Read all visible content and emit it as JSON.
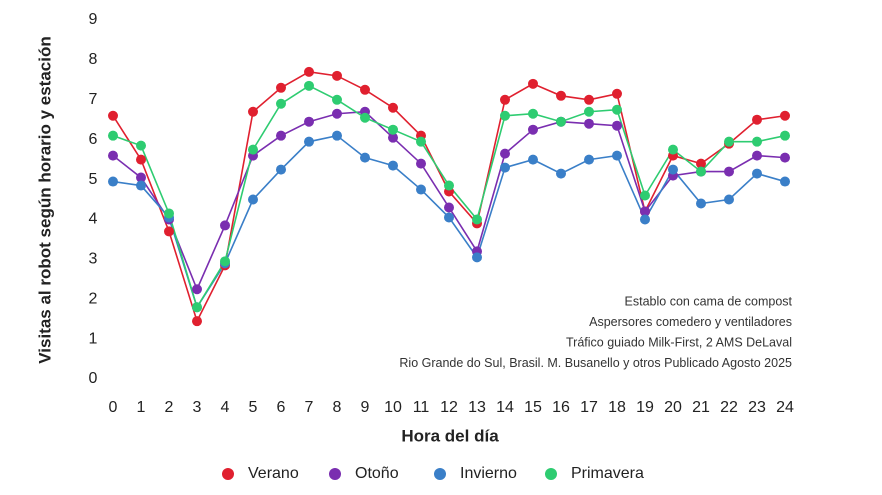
{
  "chart_data": {
    "type": "line",
    "y_label": "Visitas al robot según horario y estación",
    "x_label": "Hora del día",
    "x": [
      0,
      1,
      2,
      3,
      4,
      5,
      6,
      7,
      8,
      9,
      10,
      11,
      12,
      13,
      14,
      15,
      16,
      17,
      18,
      19,
      20,
      21,
      22,
      23,
      24
    ],
    "xlim": [
      0,
      24
    ],
    "xticks": [
      0,
      1,
      2,
      3,
      4,
      5,
      6,
      7,
      8,
      9,
      10,
      11,
      12,
      13,
      14,
      15,
      16,
      17,
      18,
      19,
      20,
      21,
      22,
      23,
      24
    ],
    "ylim": [
      0,
      9
    ],
    "yticks": [
      0,
      1,
      2,
      3,
      4,
      5,
      6,
      7,
      8,
      9
    ],
    "grid": false,
    "legend": "bottom",
    "annotations": [
      "Establo con cama de compost",
      "Aspersores comedero y ventiladores",
      "Tráfico guiado Milk-First, 2 AMS DeLaval",
      "Rio Grande do Sul, Brasil. M. Busanello y otros Publicado Agosto 2025"
    ],
    "series": [
      {
        "name": "Verano",
        "color": "#e0202f",
        "values": [
          6.6,
          5.5,
          3.7,
          1.45,
          2.85,
          6.7,
          7.3,
          7.7,
          7.6,
          7.25,
          6.8,
          6.1,
          4.7,
          3.9,
          7.0,
          7.4,
          7.1,
          7.0,
          7.15,
          4.2,
          5.6,
          5.4,
          5.9,
          6.5,
          6.6
        ]
      },
      {
        "name": "Otoño",
        "color": "#7a2eb0",
        "values": [
          5.6,
          5.05,
          4.0,
          2.25,
          3.85,
          5.6,
          6.1,
          6.45,
          6.65,
          6.7,
          6.05,
          5.4,
          4.3,
          3.2,
          5.65,
          6.25,
          6.45,
          6.4,
          6.35,
          4.2,
          5.1,
          5.2,
          5.2,
          5.6,
          5.55
        ]
      },
      {
        "name": "Invierno",
        "color": "#3a7fc8",
        "values": [
          4.95,
          4.85,
          4.05,
          1.8,
          2.9,
          4.5,
          5.25,
          5.95,
          6.1,
          5.55,
          5.35,
          4.75,
          4.05,
          3.05,
          5.3,
          5.5,
          5.15,
          5.5,
          5.6,
          4.0,
          5.25,
          4.4,
          4.5,
          5.15,
          4.95
        ]
      },
      {
        "name": "Primavera",
        "color": "#2ecc71",
        "values": [
          6.1,
          5.85,
          4.15,
          1.8,
          2.95,
          5.75,
          6.9,
          7.35,
          7.0,
          6.55,
          6.25,
          5.95,
          4.85,
          4.0,
          6.6,
          6.65,
          6.45,
          6.7,
          6.75,
          4.6,
          5.75,
          5.2,
          5.95,
          5.95,
          6.1
        ]
      }
    ]
  }
}
